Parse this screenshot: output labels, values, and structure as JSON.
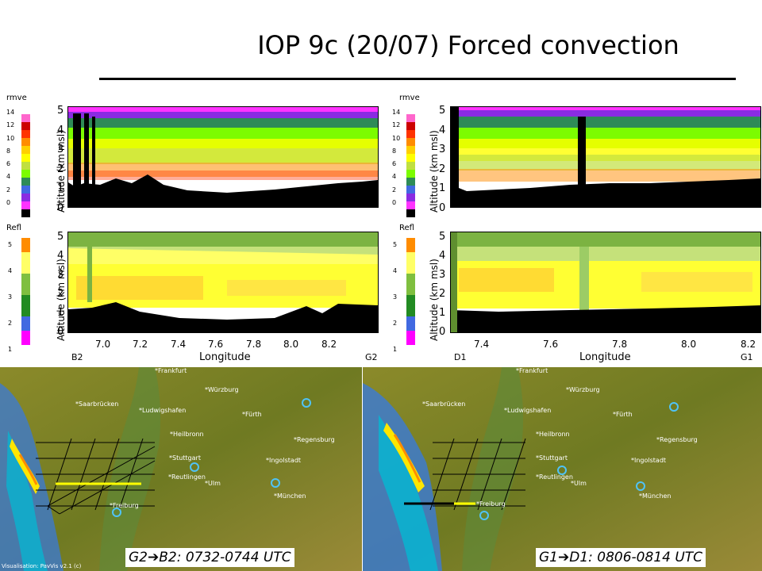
{
  "title": "IOP 9c  (20/07) Forced convection",
  "panels": {
    "left": {
      "top_var": "rmve",
      "bottom_var": "Refl",
      "top_scale": [
        "14",
        "12",
        "10",
        "8",
        "6",
        "4",
        "2",
        "0"
      ],
      "bottom_scale": [
        "5",
        "4",
        "3",
        "2",
        "1"
      ],
      "y_label": "Altitude (km msl)",
      "y_ticks": [
        "5",
        "4",
        "3",
        "2",
        "1",
        "0"
      ],
      "x_ticks": [
        "7.0",
        "7.2",
        "7.4",
        "7.6",
        "7.8",
        "8.0",
        "8.2"
      ],
      "x_label": "Longitude",
      "left_end": "B2",
      "right_end": "G2"
    },
    "right": {
      "top_var": "rmve",
      "bottom_var": "Refl",
      "top_scale": [
        "14",
        "12",
        "10",
        "8",
        "6",
        "4",
        "2",
        "0"
      ],
      "bottom_scale": [
        "5",
        "4",
        "3",
        "2",
        "1"
      ],
      "y_label": "Altitude (km msl)",
      "y_ticks": [
        "5",
        "4",
        "3",
        "2",
        "1",
        "0"
      ],
      "x_ticks": [
        "7.4",
        "7.6",
        "7.8",
        "8.0",
        "8.2"
      ],
      "x_label": "Longitude",
      "left_end": "D1",
      "right_end": "G1"
    }
  },
  "maps": {
    "left_caption_from": "G2",
    "left_caption_to": "B2: 0732-0744 UTC",
    "right_caption_from": "G1",
    "right_caption_to": "D1: 0806-0814 UTC",
    "arrow": "➔",
    "cities": [
      "*Frankfurt",
      "*Würzburg",
      "*Ludwigshafen",
      "*Saarbrücken",
      "*Fürth",
      "*Heilbronn",
      "*Regensburg",
      "*Stuttgart",
      "*Ingolstadt",
      "*Reutlingen",
      "*Ulm",
      "*München",
      "*Freiburg"
    ],
    "footer": "Visualisation: PavVis v2.1 (c) "
  },
  "colors": {
    "rmve_scale": [
      "#000000",
      "#ff33ff",
      "#8a2be2",
      "#4169e1",
      "#2e8b57",
      "#7cfc00",
      "#c0e040",
      "#ffff00",
      "#ffd000",
      "#ff8c00",
      "#ff3300",
      "#cc0000",
      "#ff66cc",
      "#ffffff"
    ],
    "refl_scale": [
      "#ff00ff",
      "#4169e1",
      "#228b22",
      "#7fbf3f",
      "#ffff66",
      "#ff8c00"
    ],
    "flight_leg": "#ffff00"
  }
}
